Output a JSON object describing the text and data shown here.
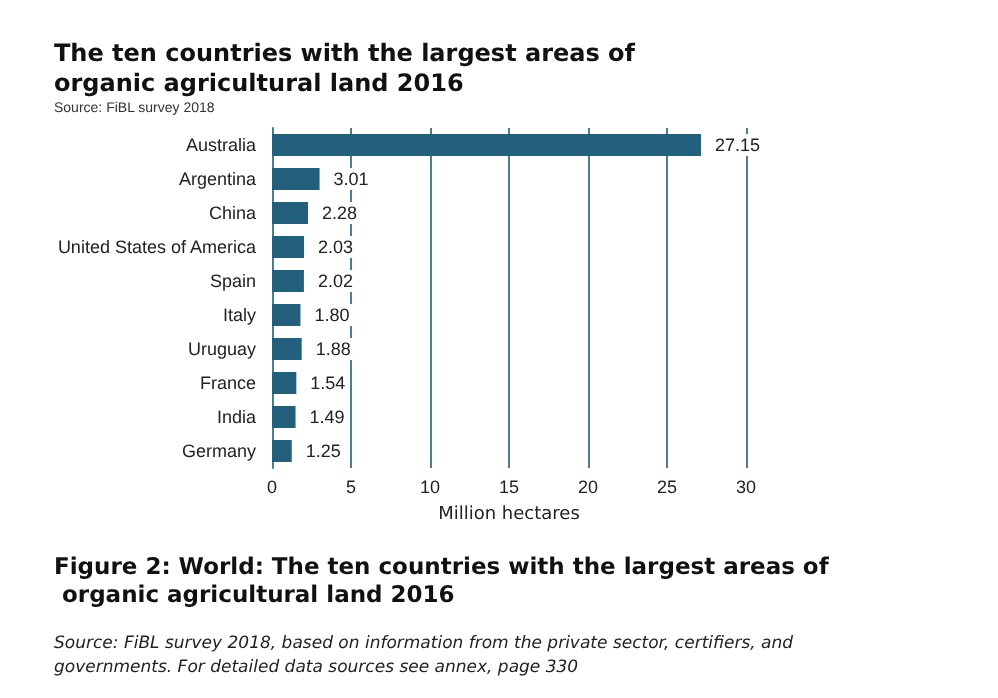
{
  "chart_data": {
    "type": "bar",
    "orientation": "horizontal",
    "title": "The ten countries with the largest areas of organic agricultural land 2016",
    "subtitle": "Source: FiBL survey 2018",
    "xlabel": "Million hectares",
    "categories": [
      "Australia",
      "Argentina",
      "China",
      "United States of America",
      "Spain",
      "Italy",
      "Uruguay",
      "France",
      "India",
      "Germany"
    ],
    "values": [
      27.15,
      3.01,
      2.28,
      2.03,
      2.02,
      1.8,
      1.88,
      1.54,
      1.49,
      1.25
    ],
    "value_labels": [
      "27.15",
      "3.01",
      "2.28",
      "2.03",
      "2.02",
      "1.80",
      "1.88",
      "1.54",
      "1.49",
      "1.25"
    ],
    "color": "#22607d",
    "xlim": [
      0,
      30
    ],
    "xticks": [
      0,
      5,
      10,
      15,
      20,
      25,
      30
    ],
    "grid": "x",
    "annotations": [
      "Figure 2: World: The ten countries with the largest areas of organic agricultural land 2016",
      "Source: FiBL survey 2018, based on information from the private sector, certifiers, and governments. For detailed data sources see annex, page 330"
    ]
  }
}
